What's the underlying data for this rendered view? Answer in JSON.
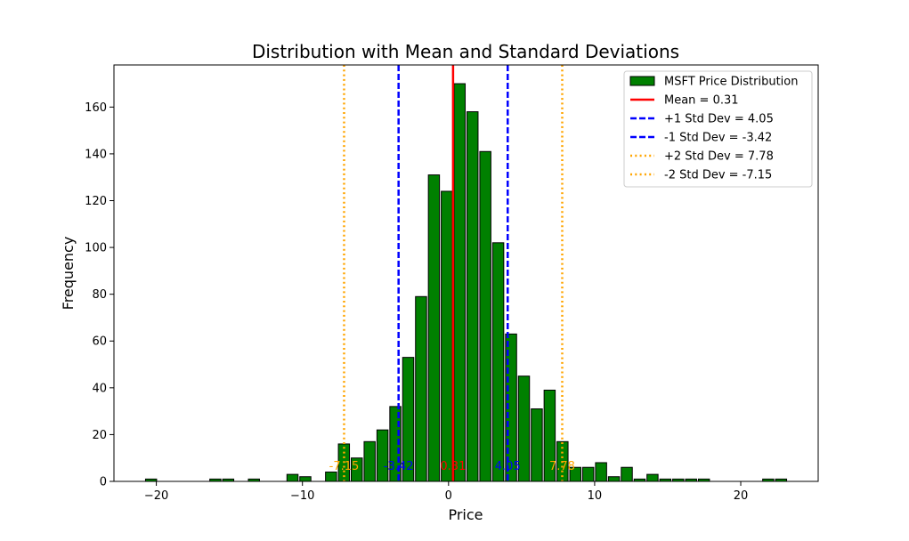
{
  "chart_data": {
    "type": "bar",
    "title": "Distribution with Mean and Standard Deviations",
    "xlabel": "Price",
    "ylabel": "Frequency",
    "xlim": [
      -22.9,
      25.3
    ],
    "ylim": [
      0,
      178
    ],
    "xticks": [
      -20,
      -10,
      0,
      10,
      20
    ],
    "xtick_labels": [
      "−20",
      "−10",
      "0",
      "10",
      "20"
    ],
    "yticks": [
      0,
      20,
      40,
      60,
      80,
      100,
      120,
      140,
      160
    ],
    "grid": false,
    "legend_position": "top-right",
    "bar_color": "#008000",
    "bar_edge": "#000000",
    "bins": {
      "start": -20.8,
      "width": 0.88,
      "counts": [
        1,
        0,
        0,
        0,
        0,
        1,
        1,
        0,
        1,
        0,
        0,
        3,
        2,
        0,
        4,
        16,
        10,
        17,
        22,
        32,
        53,
        79,
        131,
        124,
        170,
        158,
        141,
        102,
        63,
        45,
        31,
        39,
        17,
        6,
        6,
        8,
        2,
        6,
        1,
        3,
        1,
        1,
        1,
        1,
        0,
        0,
        0,
        0,
        1,
        1
      ]
    },
    "series": [
      {
        "name": "MSFT Price Distribution",
        "kind": "bar"
      }
    ],
    "lines": [
      {
        "legend": "Mean = 0.31",
        "value": 0.31,
        "label": "0.31",
        "color": "#ff0000",
        "style": "solid"
      },
      {
        "legend": "+1 Std Dev = 4.05",
        "value": 4.05,
        "label": "4.05",
        "color": "#0000ff",
        "style": "dashed"
      },
      {
        "legend": "-1 Std Dev = -3.42",
        "value": -3.42,
        "label": "-3.42",
        "color": "#0000ff",
        "style": "dashed"
      },
      {
        "legend": "+2 Std Dev = 7.78",
        "value": 7.78,
        "label": "7.78",
        "color": "#ffa500",
        "style": "dotted"
      },
      {
        "legend": "-2 Std Dev = -7.15",
        "value": -7.15,
        "label": "-7.15",
        "color": "#ffa500",
        "style": "dotted"
      }
    ],
    "annotation_y": 5
  }
}
